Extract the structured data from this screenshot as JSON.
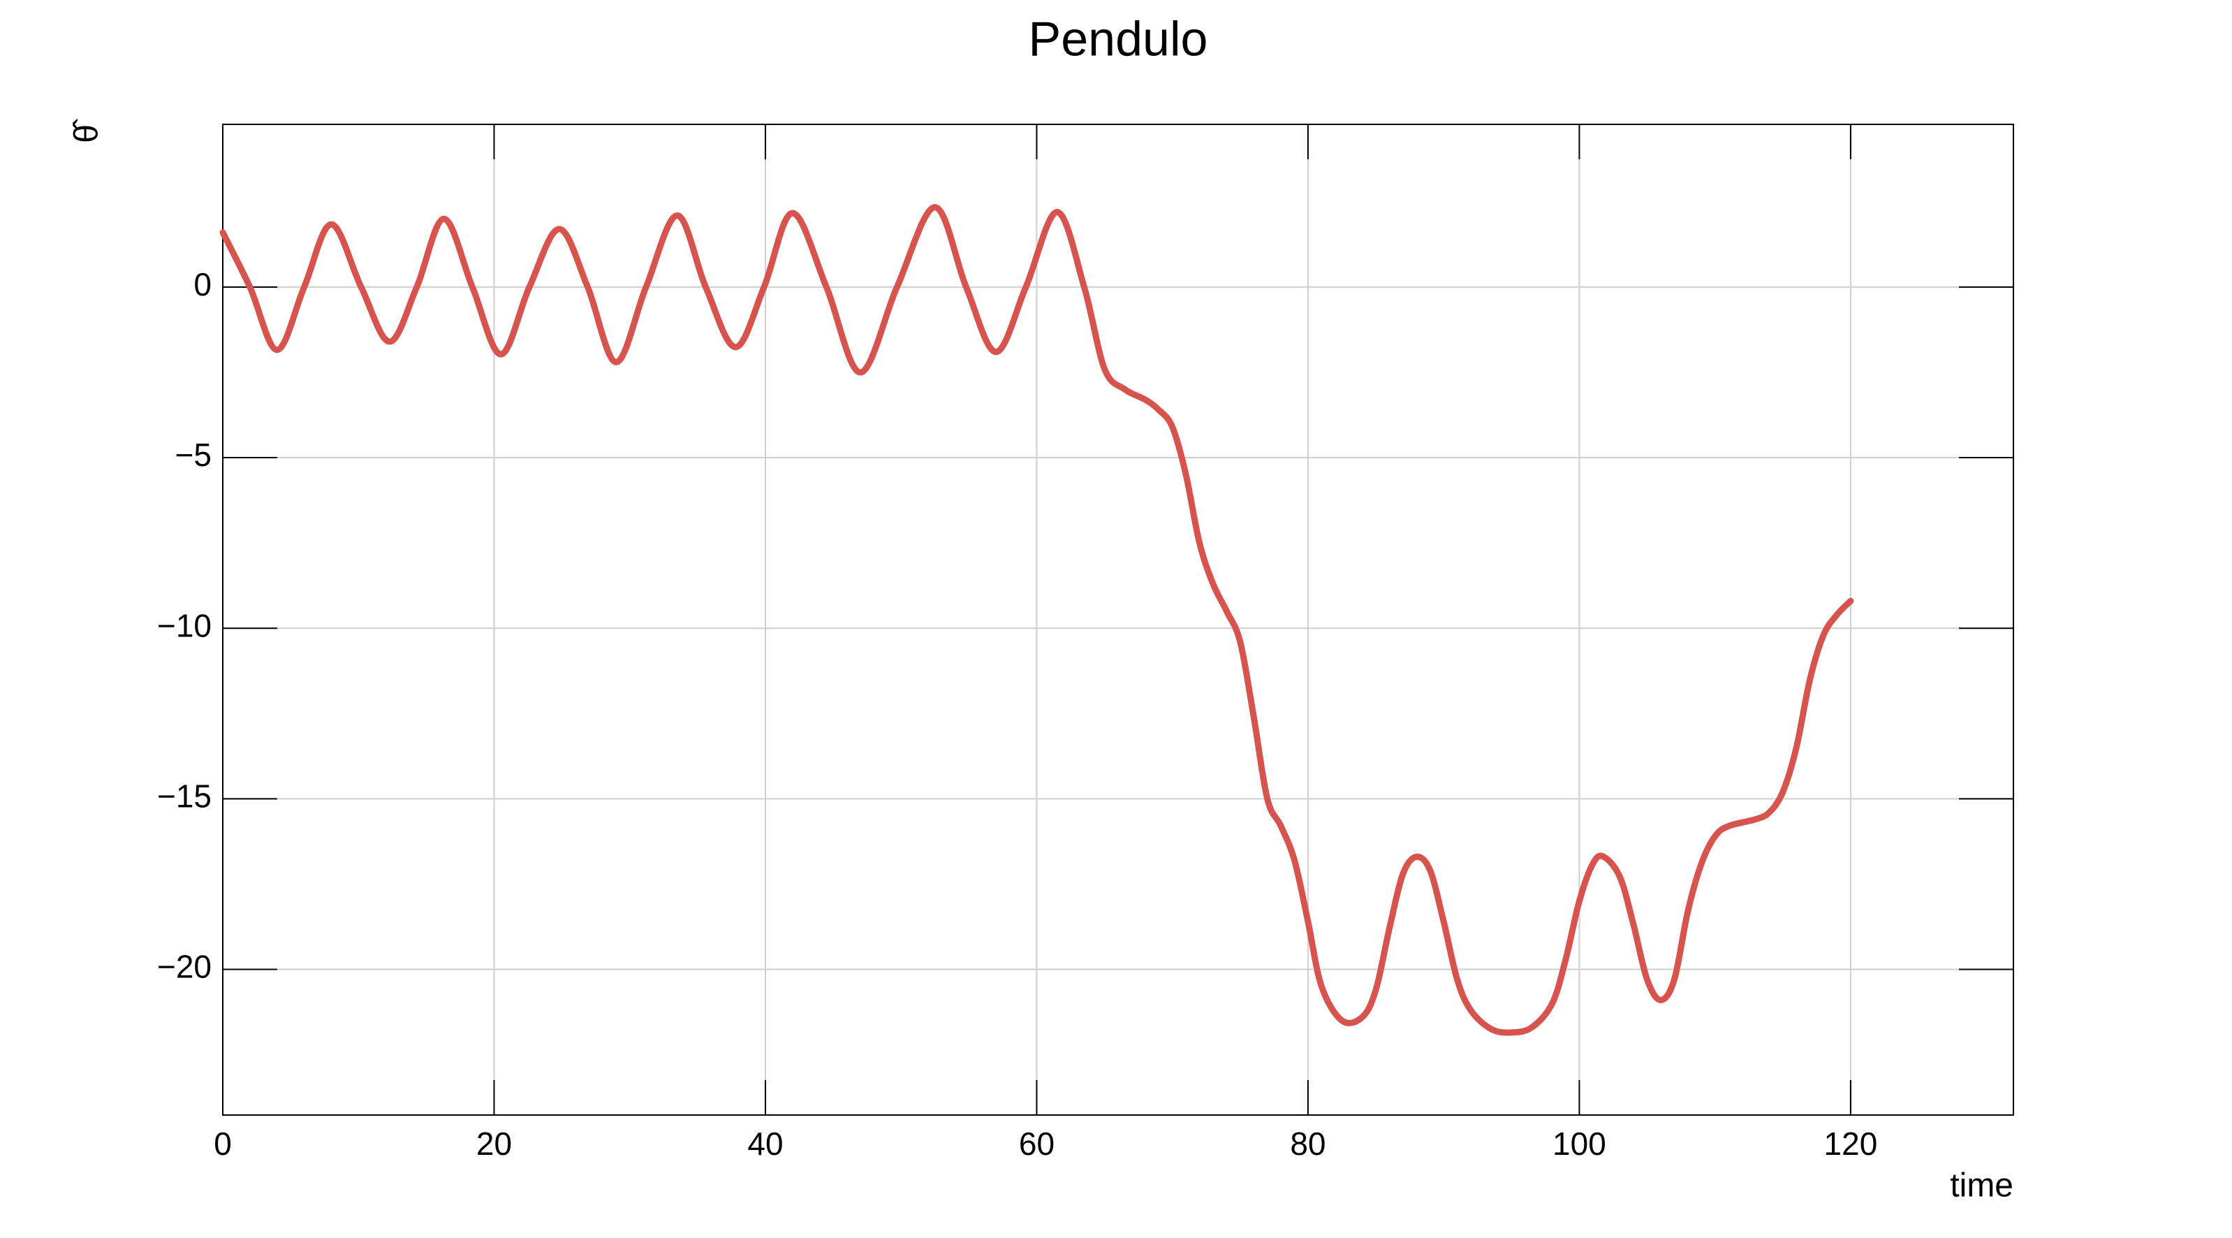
{
  "chart_data": {
    "type": "line",
    "title": "Pendulo",
    "x_label": "time",
    "y_label": "θ̂",
    "x": [
      0,
      2,
      4,
      6,
      8,
      10.2,
      12.3,
      14.3,
      16.3,
      18.4,
      20.5,
      22.6,
      24.8,
      26.9,
      29,
      31.2,
      33.5,
      35.6,
      37.8,
      39.9,
      42,
      44.5,
      47,
      49.7,
      52.5,
      54.8,
      57,
      59.2,
      61.5,
      63.5,
      65,
      66.5,
      68,
      69,
      70,
      71,
      72,
      73,
      74,
      75,
      76,
      77,
      78,
      79,
      80,
      81,
      82.5,
      84,
      85,
      86,
      87,
      88,
      89,
      90,
      91,
      92,
      93.5,
      95,
      96.5,
      98,
      99,
      100,
      101,
      101.8,
      103,
      104,
      105,
      106,
      107,
      108,
      109,
      110,
      111,
      113,
      114,
      115,
      116,
      117,
      118,
      119,
      120
    ],
    "series": [
      {
        "name": "theta",
        "color": "#d6534e",
        "values": [
          1.6,
          0,
          -1.84,
          0,
          1.84,
          0,
          -1.6,
          0,
          2.0,
          0,
          -1.97,
          0,
          1.7,
          0,
          -2.2,
          0,
          2.1,
          0,
          -1.76,
          0,
          2.17,
          0,
          -2.5,
          0,
          2.34,
          0,
          -1.9,
          0,
          2.2,
          0,
          -2.4,
          -3.0,
          -3.3,
          -3.6,
          -4.1,
          -5.5,
          -7.5,
          -8.7,
          -9.5,
          -10.4,
          -12.6,
          -15.0,
          -15.8,
          -16.8,
          -18.6,
          -20.5,
          -21.5,
          -21.4,
          -20.6,
          -18.8,
          -17.2,
          -16.7,
          -17.1,
          -18.6,
          -20.3,
          -21.2,
          -21.75,
          -21.85,
          -21.7,
          -21.0,
          -19.7,
          -18.0,
          -16.9,
          -16.7,
          -17.3,
          -18.7,
          -20.3,
          -20.9,
          -20.3,
          -18.3,
          -16.9,
          -16.1,
          -15.8,
          -15.6,
          -15.4,
          -14.8,
          -13.5,
          -11.5,
          -10.2,
          -9.6,
          -9.2
        ]
      }
    ],
    "xlim": [
      0,
      132
    ],
    "ylim": [
      -24.27,
      4.77
    ],
    "xticks": [
      0,
      20,
      40,
      60,
      80,
      100,
      120
    ],
    "yticks": [
      {
        "value": -20,
        "label": "−20"
      },
      {
        "value": -15,
        "label": "−15"
      },
      {
        "value": -10,
        "label": "−10"
      },
      {
        "value": -5,
        "label": "−5"
      },
      0
    ],
    "grid": true
  }
}
